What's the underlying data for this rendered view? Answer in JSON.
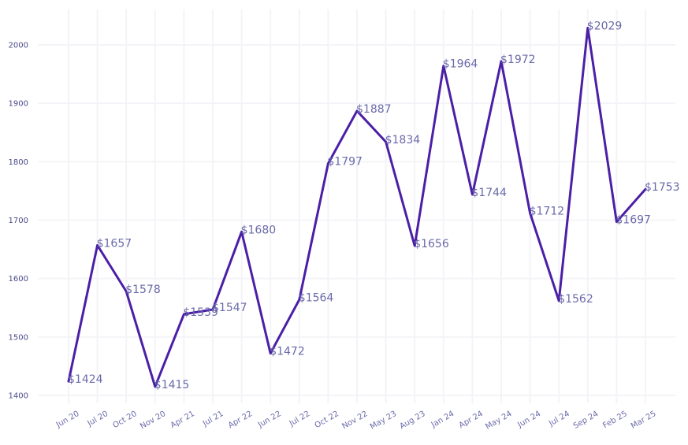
{
  "chart_data": {
    "type": "line",
    "title": "",
    "xlabel": "",
    "ylabel": "",
    "categories": [
      "Jun 20",
      "Jul 20",
      "Oct 20",
      "Nov 20",
      "Apr 21",
      "Jul 21",
      "Apr 22",
      "Jun 22",
      "Jul 22",
      "Oct 22",
      "Nov 22",
      "May 23",
      "Aug 23",
      "Jan 24",
      "Apr 24",
      "May 24",
      "Jun 24",
      "Jul 24",
      "Sep 24",
      "Feb 25",
      "Mar 25"
    ],
    "series": [
      {
        "values": [
          1424,
          1657,
          1578,
          1415,
          1539,
          1547,
          1680,
          1472,
          1564,
          1797,
          1887,
          1834,
          1656,
          1964,
          1744,
          1972,
          1712,
          1562,
          2029,
          1697,
          1753
        ],
        "labels": [
          "$1424",
          "$1657",
          "$1578",
          "$1415",
          "$1539",
          "$1547",
          "$1680",
          "$1472",
          "$1564",
          "$1797",
          "$1887",
          "$1834",
          "$1656",
          "$1964",
          "$1744",
          "$1972",
          "$1712",
          "$1562",
          "$2029",
          "$1697",
          "$1753"
        ],
        "color": "#4b1fa6"
      }
    ],
    "y_ticks": [
      "1400",
      "1500",
      "1600",
      "1700",
      "1800",
      "1900",
      "2000"
    ],
    "y_tick_values": [
      1400,
      1500,
      1600,
      1700,
      1800,
      1900,
      2000
    ],
    "ylim": [
      1385,
      2060
    ],
    "grid": true,
    "legend": "none"
  }
}
